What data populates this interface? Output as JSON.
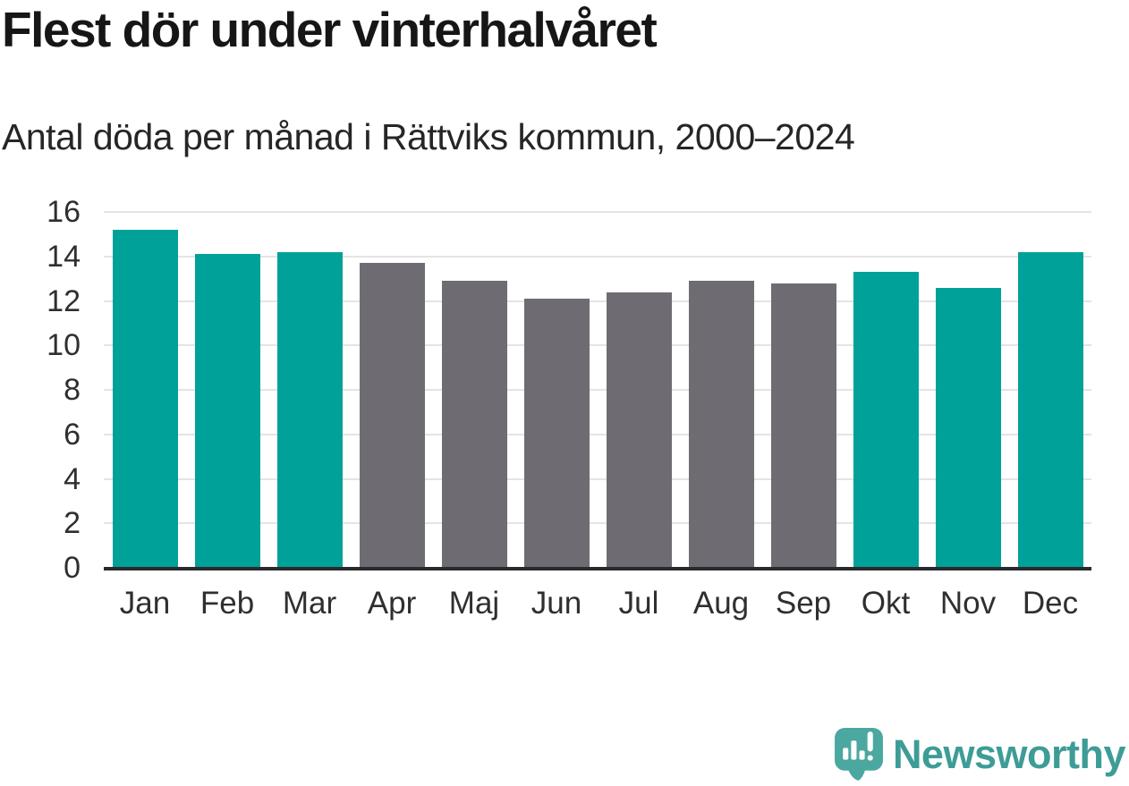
{
  "header": {
    "title": "Flest dör under vinterhalvåret",
    "subtitle": "Antal döda per månad i Rättviks kommun, 2000–2024"
  },
  "chart_data": {
    "type": "bar",
    "title": "Flest dör under vinterhalvåret",
    "subtitle": "Antal döda per månad i Rättviks kommun, 2000–2024",
    "categories": [
      "Jan",
      "Feb",
      "Mar",
      "Apr",
      "Maj",
      "Jun",
      "Jul",
      "Aug",
      "Sep",
      "Okt",
      "Nov",
      "Dec"
    ],
    "values": [
      15.2,
      14.1,
      14.2,
      13.7,
      12.9,
      12.1,
      12.4,
      12.9,
      12.8,
      13.3,
      12.6,
      14.2
    ],
    "highlighted": [
      true,
      true,
      true,
      false,
      false,
      false,
      false,
      false,
      false,
      true,
      true,
      true
    ],
    "colors": {
      "highlight": "#00A199",
      "default": "#6E6C72",
      "gridline": "#E4E4E4",
      "axis": "#282A2D",
      "tick_text": "#2F2F2F"
    },
    "xlabel": "",
    "ylabel": "",
    "ylim": [
      0,
      16
    ],
    "yticks": [
      0,
      2,
      4,
      6,
      8,
      10,
      12,
      14,
      16
    ],
    "grid": true,
    "legend": "none"
  },
  "footer": {
    "brand": "Newsworthy",
    "logo_icon": "newsworthy-speech-bubble-chart-icon",
    "brand_color": "#3E9C96",
    "icon_color": "#4BA8A0"
  }
}
